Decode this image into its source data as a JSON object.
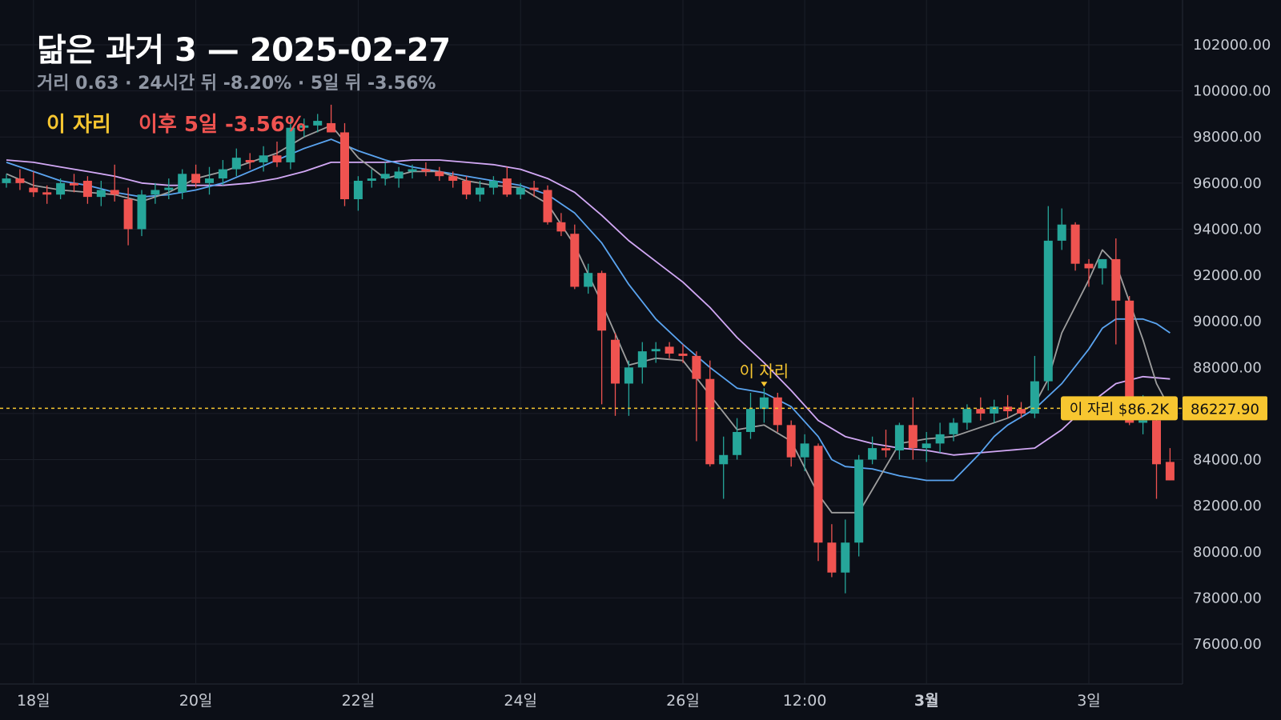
{
  "header": {
    "title": "닮은 과거 3 — 2025-02-27",
    "subtitle": "거리 0.63 · 24시간 뒤 -8.20% · 5일 뒤 -3.56%",
    "marker_label": "이 자리",
    "outcome_label": "이후 5일 -3.56%"
  },
  "colors": {
    "background": "#0c0f17",
    "up": "#26a69a",
    "down": "#ef5350",
    "ma_short": "#9e9e9e",
    "ma_mid": "#5aa4f0",
    "ma_long": "#d2a8f5",
    "marker": "#f7c630"
  },
  "chart_data": {
    "type": "candlestick",
    "ylim": [
      74500,
      104000
    ],
    "y_ticks": [
      "102000.00",
      "100000.00",
      "98000.00",
      "96000.00",
      "94000.00",
      "92000.00",
      "90000.00",
      "88000.00",
      "86000.00",
      "84000.00",
      "82000.00",
      "80000.00",
      "78000.00",
      "76000.00"
    ],
    "x_labels": [
      {
        "label": "18일",
        "at": 2,
        "bold": false
      },
      {
        "label": "20일",
        "at": 14,
        "bold": false
      },
      {
        "label": "22일",
        "at": 26,
        "bold": false
      },
      {
        "label": "24일",
        "at": 38,
        "bold": false
      },
      {
        "label": "26일",
        "at": 50,
        "bold": false
      },
      {
        "label": "12:00",
        "at": 59,
        "bold": false
      },
      {
        "label": "3월",
        "at": 68,
        "bold": true
      },
      {
        "label": "3일",
        "at": 80,
        "bold": false
      }
    ],
    "candles": [
      [
        96000,
        96400,
        95800,
        96200
      ],
      [
        96200,
        96600,
        95700,
        96000
      ],
      [
        95800,
        96500,
        95400,
        95600
      ],
      [
        95600,
        95900,
        95100,
        95500
      ],
      [
        95500,
        96200,
        95300,
        96000
      ],
      [
        96000,
        96400,
        95600,
        95900
      ],
      [
        96100,
        96300,
        95100,
        95400
      ],
      [
        95400,
        96100,
        95000,
        95700
      ],
      [
        95700,
        96800,
        95200,
        95500
      ],
      [
        95300,
        95800,
        93300,
        94000
      ],
      [
        94000,
        95700,
        93700,
        95500
      ],
      [
        95500,
        96000,
        95100,
        95700
      ],
      [
        95700,
        96200,
        95300,
        95800
      ],
      [
        95600,
        96600,
        95300,
        96400
      ],
      [
        96400,
        96800,
        95800,
        96000
      ],
      [
        96000,
        96700,
        95500,
        96200
      ],
      [
        96200,
        97000,
        95900,
        96600
      ],
      [
        96600,
        97500,
        96300,
        97100
      ],
      [
        97000,
        97300,
        96600,
        96900
      ],
      [
        96900,
        97600,
        96500,
        97200
      ],
      [
        97200,
        97800,
        96700,
        96900
      ],
      [
        96900,
        98800,
        96600,
        98400
      ],
      [
        98400,
        98800,
        98000,
        98500
      ],
      [
        98500,
        99000,
        98200,
        98700
      ],
      [
        98600,
        99400,
        98200,
        98200
      ],
      [
        98200,
        98600,
        95000,
        95300
      ],
      [
        95300,
        96300,
        94800,
        96100
      ],
      [
        96100,
        96600,
        95800,
        96200
      ],
      [
        96200,
        96900,
        95900,
        96400
      ],
      [
        96200,
        96700,
        95800,
        96500
      ],
      [
        96500,
        96800,
        96200,
        96600
      ],
      [
        96600,
        96900,
        96300,
        96500
      ],
      [
        96500,
        96700,
        96100,
        96300
      ],
      [
        96300,
        96500,
        95800,
        96100
      ],
      [
        96100,
        96300,
        95300,
        95500
      ],
      [
        95500,
        96100,
        95200,
        95800
      ],
      [
        95800,
        96300,
        95500,
        96100
      ],
      [
        96200,
        96700,
        95400,
        95500
      ],
      [
        95500,
        96000,
        95300,
        95800
      ],
      [
        95800,
        96100,
        95400,
        95700
      ],
      [
        95700,
        95900,
        94200,
        94300
      ],
      [
        94300,
        94700,
        93700,
        93900
      ],
      [
        93800,
        94200,
        91400,
        91500
      ],
      [
        91500,
        92500,
        91200,
        92100
      ],
      [
        92100,
        92200,
        86400,
        89600
      ],
      [
        89200,
        89500,
        85900,
        87300
      ],
      [
        87300,
        88300,
        85900,
        88000
      ],
      [
        88000,
        89100,
        87300,
        88700
      ],
      [
        88700,
        89100,
        88200,
        88800
      ],
      [
        88900,
        89100,
        88400,
        88600
      ],
      [
        88600,
        89000,
        88200,
        88500
      ],
      [
        88500,
        88700,
        84800,
        87500
      ],
      [
        87500,
        88300,
        83700,
        83800
      ],
      [
        83800,
        85000,
        82300,
        84200
      ],
      [
        84200,
        85800,
        84000,
        85200
      ],
      [
        85200,
        86900,
        84900,
        86200
      ],
      [
        86200,
        87100,
        85600,
        86700
      ],
      [
        86700,
        86900,
        85200,
        85500
      ],
      [
        85500,
        85700,
        83700,
        84100
      ],
      [
        84100,
        85100,
        83500,
        84700
      ],
      [
        84600,
        84700,
        79600,
        80400
      ],
      [
        80400,
        81200,
        78900,
        79100
      ],
      [
        79100,
        81400,
        78200,
        80400
      ],
      [
        80400,
        84200,
        79800,
        84000
      ],
      [
        84000,
        85000,
        83800,
        84500
      ],
      [
        84500,
        85300,
        84100,
        84400
      ],
      [
        84400,
        85600,
        84000,
        85500
      ],
      [
        85500,
        86700,
        84000,
        84500
      ],
      [
        84500,
        85200,
        83900,
        84700
      ],
      [
        84700,
        85600,
        84300,
        85100
      ],
      [
        85100,
        85800,
        84800,
        85600
      ],
      [
        85600,
        86400,
        85300,
        86200
      ],
      [
        86200,
        86700,
        85700,
        86000
      ],
      [
        86000,
        86600,
        85600,
        86300
      ],
      [
        86300,
        86800,
        85800,
        86100
      ],
      [
        86200,
        86500,
        85800,
        86000
      ],
      [
        86000,
        88500,
        85800,
        87400
      ],
      [
        87400,
        95000,
        87000,
        93500
      ],
      [
        93500,
        94900,
        93100,
        94200
      ],
      [
        94200,
        94300,
        92200,
        92500
      ],
      [
        92500,
        92700,
        91500,
        92300
      ],
      [
        92300,
        92700,
        91600,
        92700
      ],
      [
        92700,
        93600,
        89000,
        90900
      ],
      [
        90900,
        91100,
        85500,
        85600
      ],
      [
        85600,
        86800,
        85100,
        85700
      ],
      [
        85700,
        86200,
        82300,
        83800
      ],
      [
        83900,
        84500,
        83100,
        83100
      ]
    ],
    "ma_short": [
      [
        0,
        96400
      ],
      [
        2,
        95900
      ],
      [
        4,
        95700
      ],
      [
        6,
        95600
      ],
      [
        8,
        95500
      ],
      [
        10,
        95200
      ],
      [
        12,
        95600
      ],
      [
        14,
        96200
      ],
      [
        16,
        96500
      ],
      [
        18,
        96900
      ],
      [
        20,
        97300
      ],
      [
        22,
        98000
      ],
      [
        24,
        98500
      ],
      [
        26,
        97100
      ],
      [
        28,
        96200
      ],
      [
        30,
        96500
      ],
      [
        32,
        96500
      ],
      [
        34,
        96100
      ],
      [
        36,
        95900
      ],
      [
        38,
        95800
      ],
      [
        40,
        95100
      ],
      [
        42,
        93300
      ],
      [
        44,
        90800
      ],
      [
        46,
        88100
      ],
      [
        48,
        88400
      ],
      [
        50,
        88300
      ],
      [
        52,
        86800
      ],
      [
        54,
        85300
      ],
      [
        56,
        85500
      ],
      [
        58,
        84800
      ],
      [
        60,
        82500
      ],
      [
        61,
        81700
      ],
      [
        63,
        81700
      ],
      [
        64,
        82700
      ],
      [
        66,
        84700
      ],
      [
        68,
        84900
      ],
      [
        70,
        85000
      ],
      [
        72,
        85400
      ],
      [
        74,
        85800
      ],
      [
        76,
        86400
      ],
      [
        77,
        87500
      ],
      [
        78,
        89500
      ],
      [
        80,
        91800
      ],
      [
        81,
        93100
      ],
      [
        82,
        92500
      ],
      [
        84,
        89200
      ],
      [
        85,
        87300
      ],
      [
        86,
        86200
      ]
    ],
    "ma_mid": [
      [
        0,
        96900
      ],
      [
        2,
        96500
      ],
      [
        4,
        96100
      ],
      [
        6,
        95900
      ],
      [
        8,
        95600
      ],
      [
        10,
        95400
      ],
      [
        12,
        95500
      ],
      [
        14,
        95700
      ],
      [
        16,
        96000
      ],
      [
        18,
        96500
      ],
      [
        20,
        97000
      ],
      [
        22,
        97500
      ],
      [
        24,
        97900
      ],
      [
        26,
        97400
      ],
      [
        28,
        97000
      ],
      [
        30,
        96700
      ],
      [
        32,
        96500
      ],
      [
        34,
        96300
      ],
      [
        36,
        96100
      ],
      [
        38,
        95900
      ],
      [
        40,
        95500
      ],
      [
        42,
        94700
      ],
      [
        44,
        93400
      ],
      [
        46,
        91600
      ],
      [
        48,
        90100
      ],
      [
        50,
        89000
      ],
      [
        52,
        88000
      ],
      [
        54,
        87100
      ],
      [
        56,
        86900
      ],
      [
        58,
        86300
      ],
      [
        60,
        85000
      ],
      [
        61,
        84000
      ],
      [
        62,
        83700
      ],
      [
        64,
        83600
      ],
      [
        66,
        83300
      ],
      [
        68,
        83100
      ],
      [
        70,
        83100
      ],
      [
        71,
        83700
      ],
      [
        72,
        84300
      ],
      [
        73,
        85000
      ],
      [
        74,
        85500
      ],
      [
        76,
        86200
      ],
      [
        78,
        87300
      ],
      [
        80,
        88800
      ],
      [
        81,
        89700
      ],
      [
        82,
        90100
      ],
      [
        84,
        90100
      ],
      [
        85,
        89900
      ],
      [
        86,
        89500
      ]
    ],
    "ma_long": [
      [
        0,
        97000
      ],
      [
        2,
        96900
      ],
      [
        4,
        96700
      ],
      [
        6,
        96500
      ],
      [
        8,
        96300
      ],
      [
        10,
        96000
      ],
      [
        12,
        95900
      ],
      [
        14,
        95900
      ],
      [
        16,
        95900
      ],
      [
        18,
        96000
      ],
      [
        20,
        96200
      ],
      [
        22,
        96500
      ],
      [
        24,
        96900
      ],
      [
        26,
        96900
      ],
      [
        28,
        96900
      ],
      [
        30,
        97000
      ],
      [
        32,
        97000
      ],
      [
        34,
        96900
      ],
      [
        36,
        96800
      ],
      [
        38,
        96600
      ],
      [
        40,
        96200
      ],
      [
        42,
        95600
      ],
      [
        44,
        94600
      ],
      [
        46,
        93500
      ],
      [
        48,
        92600
      ],
      [
        50,
        91700
      ],
      [
        52,
        90600
      ],
      [
        54,
        89300
      ],
      [
        56,
        88200
      ],
      [
        58,
        87000
      ],
      [
        60,
        85700
      ],
      [
        62,
        85000
      ],
      [
        64,
        84700
      ],
      [
        66,
        84500
      ],
      [
        68,
        84400
      ],
      [
        70,
        84200
      ],
      [
        72,
        84300
      ],
      [
        74,
        84400
      ],
      [
        76,
        84500
      ],
      [
        78,
        85300
      ],
      [
        80,
        86400
      ],
      [
        82,
        87300
      ],
      [
        84,
        87600
      ],
      [
        86,
        87500
      ]
    ],
    "marker": {
      "index": 56,
      "price": 86227.9,
      "text": "이 자리"
    },
    "price_line": {
      "price": 86227.9,
      "price_label": "86227.90",
      "tag_text": "이 자리",
      "tag_value": "$86.2K"
    }
  }
}
